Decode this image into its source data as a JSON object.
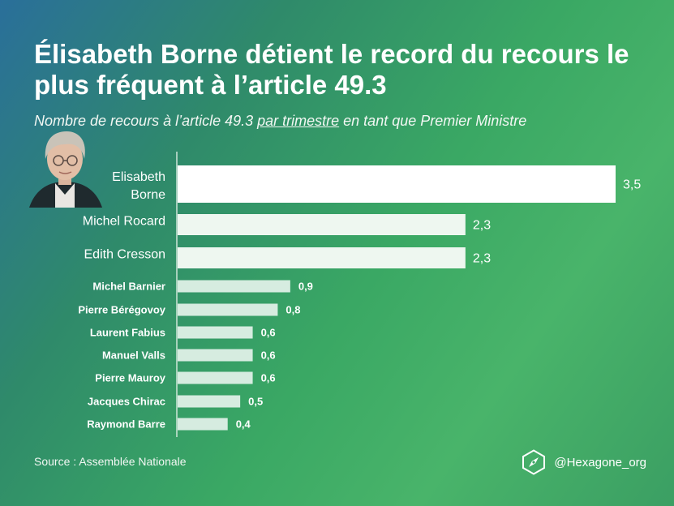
{
  "header": {
    "title": "Élisabeth Borne détient le record du recours le plus fréquent à l’article 49.3",
    "subtitle_before": "Nombre de recours à l’article 49.3 ",
    "subtitle_underlined": "par trimestre",
    "subtitle_after": " en tant que Premier Ministre"
  },
  "chart_data": {
    "type": "bar",
    "orientation": "horizontal",
    "categories": [
      "Elisabeth Borne",
      "Michel Rocard",
      "Edith Cresson",
      "Michel Barnier",
      "Pierre Bérégovoy",
      "Laurent Fabius",
      "Manuel Valls",
      "Pierre Mauroy",
      "Jacques Chirac",
      "Raymond Barre"
    ],
    "values": [
      3.5,
      2.3,
      2.3,
      0.9,
      0.8,
      0.6,
      0.6,
      0.6,
      0.5,
      0.4
    ],
    "value_labels": [
      "3,5",
      "2,3",
      "2,3",
      "0,9",
      "0,8",
      "0,6",
      "0,6",
      "0,6",
      "0,5",
      "0,4"
    ],
    "xlim": [
      0,
      3.5
    ],
    "grid": false,
    "colors": {
      "highlight": "#ffffff",
      "large": "#eef7f0",
      "small": "#d6ece0"
    }
  },
  "footer": {
    "source": "Source : Assemblée Nationale",
    "brand": "@Hexagone_org"
  },
  "icons": {
    "photo": "portrait-photo",
    "logo": "hexagon-compass-icon"
  }
}
